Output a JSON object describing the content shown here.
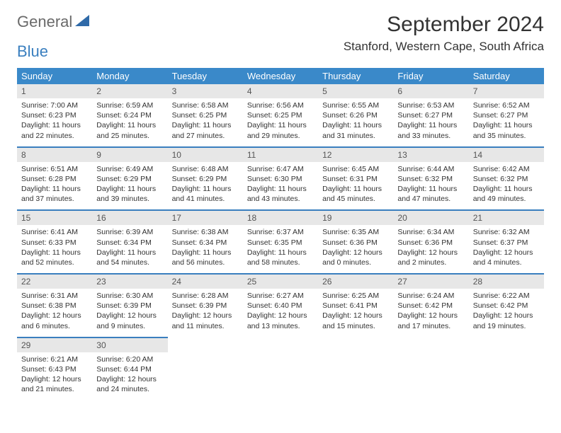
{
  "brand": {
    "word1": "General",
    "word2": "Blue"
  },
  "title": "September 2024",
  "location": "Stanford, Western Cape, South Africa",
  "colors": {
    "header_bg": "#3a89c9",
    "header_text": "#ffffff",
    "accent_line": "#3a7fbf",
    "daynum_bg": "#e7e7e7",
    "body_text": "#333333",
    "logo_gray": "#6a6a6a",
    "logo_blue": "#3a7fbf"
  },
  "typography": {
    "title_fontsize": 30,
    "location_fontsize": 17,
    "dayheader_fontsize": 13,
    "daynum_fontsize": 12,
    "cell_fontsize": 10.5
  },
  "day_headers": [
    "Sunday",
    "Monday",
    "Tuesday",
    "Wednesday",
    "Thursday",
    "Friday",
    "Saturday"
  ],
  "weeks": [
    {
      "nums": [
        "1",
        "2",
        "3",
        "4",
        "5",
        "6",
        "7"
      ],
      "cells": [
        {
          "sunrise": "Sunrise: 7:00 AM",
          "sunset": "Sunset: 6:23 PM",
          "dl1": "Daylight: 11 hours",
          "dl2": "and 22 minutes."
        },
        {
          "sunrise": "Sunrise: 6:59 AM",
          "sunset": "Sunset: 6:24 PM",
          "dl1": "Daylight: 11 hours",
          "dl2": "and 25 minutes."
        },
        {
          "sunrise": "Sunrise: 6:58 AM",
          "sunset": "Sunset: 6:25 PM",
          "dl1": "Daylight: 11 hours",
          "dl2": "and 27 minutes."
        },
        {
          "sunrise": "Sunrise: 6:56 AM",
          "sunset": "Sunset: 6:25 PM",
          "dl1": "Daylight: 11 hours",
          "dl2": "and 29 minutes."
        },
        {
          "sunrise": "Sunrise: 6:55 AM",
          "sunset": "Sunset: 6:26 PM",
          "dl1": "Daylight: 11 hours",
          "dl2": "and 31 minutes."
        },
        {
          "sunrise": "Sunrise: 6:53 AM",
          "sunset": "Sunset: 6:27 PM",
          "dl1": "Daylight: 11 hours",
          "dl2": "and 33 minutes."
        },
        {
          "sunrise": "Sunrise: 6:52 AM",
          "sunset": "Sunset: 6:27 PM",
          "dl1": "Daylight: 11 hours",
          "dl2": "and 35 minutes."
        }
      ]
    },
    {
      "nums": [
        "8",
        "9",
        "10",
        "11",
        "12",
        "13",
        "14"
      ],
      "cells": [
        {
          "sunrise": "Sunrise: 6:51 AM",
          "sunset": "Sunset: 6:28 PM",
          "dl1": "Daylight: 11 hours",
          "dl2": "and 37 minutes."
        },
        {
          "sunrise": "Sunrise: 6:49 AM",
          "sunset": "Sunset: 6:29 PM",
          "dl1": "Daylight: 11 hours",
          "dl2": "and 39 minutes."
        },
        {
          "sunrise": "Sunrise: 6:48 AM",
          "sunset": "Sunset: 6:29 PM",
          "dl1": "Daylight: 11 hours",
          "dl2": "and 41 minutes."
        },
        {
          "sunrise": "Sunrise: 6:47 AM",
          "sunset": "Sunset: 6:30 PM",
          "dl1": "Daylight: 11 hours",
          "dl2": "and 43 minutes."
        },
        {
          "sunrise": "Sunrise: 6:45 AM",
          "sunset": "Sunset: 6:31 PM",
          "dl1": "Daylight: 11 hours",
          "dl2": "and 45 minutes."
        },
        {
          "sunrise": "Sunrise: 6:44 AM",
          "sunset": "Sunset: 6:32 PM",
          "dl1": "Daylight: 11 hours",
          "dl2": "and 47 minutes."
        },
        {
          "sunrise": "Sunrise: 6:42 AM",
          "sunset": "Sunset: 6:32 PM",
          "dl1": "Daylight: 11 hours",
          "dl2": "and 49 minutes."
        }
      ]
    },
    {
      "nums": [
        "15",
        "16",
        "17",
        "18",
        "19",
        "20",
        "21"
      ],
      "cells": [
        {
          "sunrise": "Sunrise: 6:41 AM",
          "sunset": "Sunset: 6:33 PM",
          "dl1": "Daylight: 11 hours",
          "dl2": "and 52 minutes."
        },
        {
          "sunrise": "Sunrise: 6:39 AM",
          "sunset": "Sunset: 6:34 PM",
          "dl1": "Daylight: 11 hours",
          "dl2": "and 54 minutes."
        },
        {
          "sunrise": "Sunrise: 6:38 AM",
          "sunset": "Sunset: 6:34 PM",
          "dl1": "Daylight: 11 hours",
          "dl2": "and 56 minutes."
        },
        {
          "sunrise": "Sunrise: 6:37 AM",
          "sunset": "Sunset: 6:35 PM",
          "dl1": "Daylight: 11 hours",
          "dl2": "and 58 minutes."
        },
        {
          "sunrise": "Sunrise: 6:35 AM",
          "sunset": "Sunset: 6:36 PM",
          "dl1": "Daylight: 12 hours",
          "dl2": "and 0 minutes."
        },
        {
          "sunrise": "Sunrise: 6:34 AM",
          "sunset": "Sunset: 6:36 PM",
          "dl1": "Daylight: 12 hours",
          "dl2": "and 2 minutes."
        },
        {
          "sunrise": "Sunrise: 6:32 AM",
          "sunset": "Sunset: 6:37 PM",
          "dl1": "Daylight: 12 hours",
          "dl2": "and 4 minutes."
        }
      ]
    },
    {
      "nums": [
        "22",
        "23",
        "24",
        "25",
        "26",
        "27",
        "28"
      ],
      "cells": [
        {
          "sunrise": "Sunrise: 6:31 AM",
          "sunset": "Sunset: 6:38 PM",
          "dl1": "Daylight: 12 hours",
          "dl2": "and 6 minutes."
        },
        {
          "sunrise": "Sunrise: 6:30 AM",
          "sunset": "Sunset: 6:39 PM",
          "dl1": "Daylight: 12 hours",
          "dl2": "and 9 minutes."
        },
        {
          "sunrise": "Sunrise: 6:28 AM",
          "sunset": "Sunset: 6:39 PM",
          "dl1": "Daylight: 12 hours",
          "dl2": "and 11 minutes."
        },
        {
          "sunrise": "Sunrise: 6:27 AM",
          "sunset": "Sunset: 6:40 PM",
          "dl1": "Daylight: 12 hours",
          "dl2": "and 13 minutes."
        },
        {
          "sunrise": "Sunrise: 6:25 AM",
          "sunset": "Sunset: 6:41 PM",
          "dl1": "Daylight: 12 hours",
          "dl2": "and 15 minutes."
        },
        {
          "sunrise": "Sunrise: 6:24 AM",
          "sunset": "Sunset: 6:42 PM",
          "dl1": "Daylight: 12 hours",
          "dl2": "and 17 minutes."
        },
        {
          "sunrise": "Sunrise: 6:22 AM",
          "sunset": "Sunset: 6:42 PM",
          "dl1": "Daylight: 12 hours",
          "dl2": "and 19 minutes."
        }
      ]
    },
    {
      "nums": [
        "29",
        "30",
        "",
        "",
        "",
        "",
        ""
      ],
      "cells": [
        {
          "sunrise": "Sunrise: 6:21 AM",
          "sunset": "Sunset: 6:43 PM",
          "dl1": "Daylight: 12 hours",
          "dl2": "and 21 minutes."
        },
        {
          "sunrise": "Sunrise: 6:20 AM",
          "sunset": "Sunset: 6:44 PM",
          "dl1": "Daylight: 12 hours",
          "dl2": "and 24 minutes."
        },
        null,
        null,
        null,
        null,
        null
      ]
    }
  ]
}
